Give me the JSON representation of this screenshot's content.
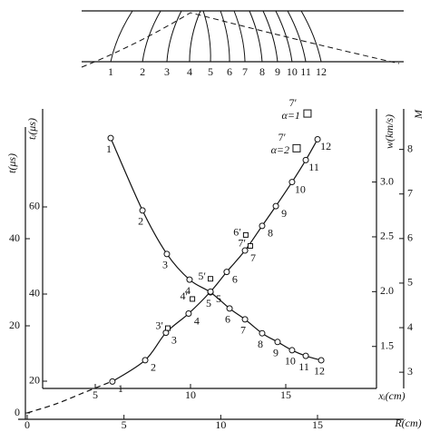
{
  "chart_data": {
    "type": "line",
    "x_label": "xᵢ(cm)",
    "xlim": [
      2.238,
      19.762
    ],
    "xticks": [
      5,
      10,
      15
    ],
    "r_label": "R(cm)",
    "rlim": [
      -0.469,
      19.453
    ],
    "rticks": [
      0,
      5,
      10,
      15
    ],
    "t_label": "t(μs)",
    "tlim": [
      -1.458,
      65.625
    ],
    "tticks": [
      0,
      20,
      40
    ],
    "ti_label": "tᵢ(μs)",
    "tilim": [
      18.333,
      82.5
    ],
    "titicks": [
      20,
      40,
      60
    ],
    "w_label": "w(km/s)",
    "wlim": [
      1.117,
      3.667
    ],
    "wticks": [
      1.5,
      {
        "value": 2,
        "label": "2.0"
      },
      2.5,
      {
        "value": 3,
        "label": "3.0"
      }
    ],
    "M_label": "M",
    "Mlim": [
      2.636,
      8.909
    ],
    "Mticks": [
      3,
      4,
      5,
      6,
      7,
      8
    ],
    "point_labels": [
      "1",
      "2",
      "3",
      "4",
      "5",
      "6",
      "7",
      "8",
      "9",
      "10",
      "11",
      "12"
    ],
    "series": [
      {
        "axis": "ti",
        "x": [
          5.81,
          7.48,
          8.76,
          9.95,
          11.05,
          12.05,
          12.86,
          13.76,
          14.57,
          15.33,
          16.05,
          16.86
        ],
        "values": [
          75.8,
          59.2,
          49.2,
          43.3,
          40.4,
          36.7,
          34.2,
          31.0,
          29.0,
          27.1,
          25.8,
          24.8
        ]
      },
      {
        "axis": "w",
        "x": [
          5.9,
          7.62,
          8.71,
          9.9,
          11.05,
          11.9,
          12.86,
          13.76,
          14.48,
          15.33,
          16.05,
          16.67
        ],
        "values": [
          1.18,
          1.375,
          1.625,
          1.8,
          2.0,
          2.18,
          2.375,
          2.6,
          2.78,
          3.0,
          3.2,
          3.39
        ]
      },
      {
        "axis": "t",
        "xaxis": "R",
        "dashed": true,
        "x": [
          0,
          1.5,
          3,
          4.4
        ],
        "values": [
          0,
          2.1,
          4.8,
          7.3
        ]
      }
    ],
    "primed": {
      "labels": [
        "3′",
        "4′",
        "5′",
        "6′",
        "7′"
      ],
      "x": [
        8.81,
        10.1,
        11.05,
        12.9,
        13.14
      ],
      "values": [
        1.667,
        1.933,
        2.117,
        2.517,
        2.417
      ]
    },
    "squares": [
      {
        "label": "7′",
        "text": "α=1",
        "x": 16.14,
        "value": 3.625
      },
      {
        "label": "7′",
        "text": "α=2",
        "x": 15.57,
        "value": 3.308
      }
    ]
  }
}
